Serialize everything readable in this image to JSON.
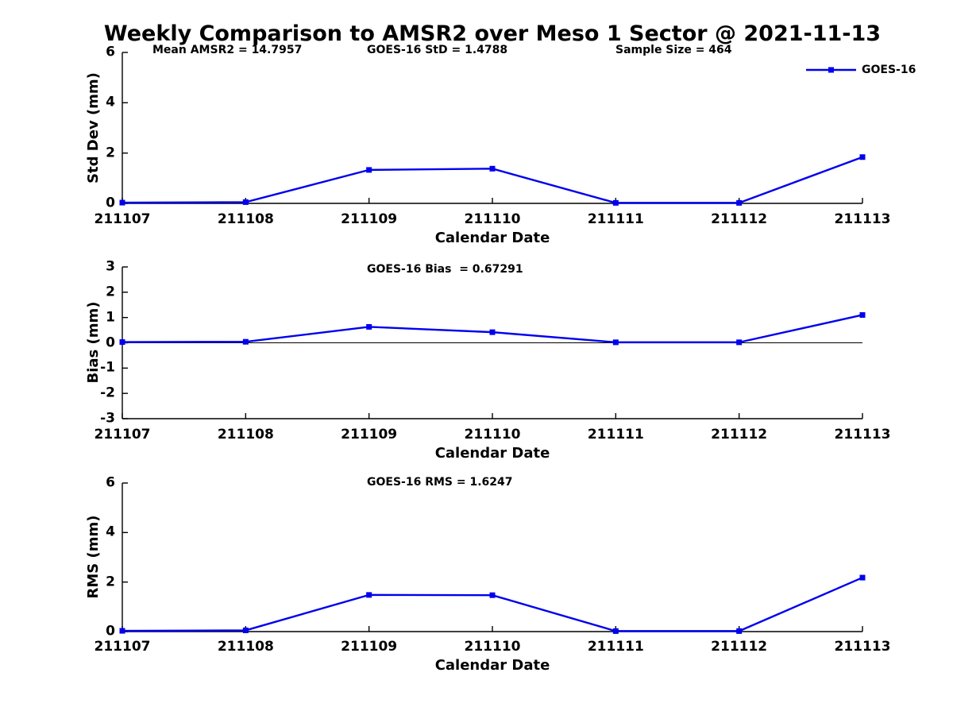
{
  "title": "Weekly Comparison to AMSR2 over Meso 1 Sector @ 2021-11-13",
  "legend": {
    "label": "GOES-16"
  },
  "colors": {
    "line": "#0000EE",
    "axis": "#000000",
    "zero_line": "#000000",
    "background": "#FFFFFF",
    "text": "#000000"
  },
  "chart_data": [
    {
      "id": "std-dev",
      "type": "line",
      "annotations": [
        "Mean AMSR2 = 14.7957",
        "GOES-16 StD = 1.4788",
        "Sample Size = 464"
      ],
      "xlabel": "Calendar Date",
      "ylabel": "Std Dev (mm)",
      "ylim": [
        0,
        6
      ],
      "ytick_values": [
        0,
        2,
        4,
        6
      ],
      "ytick_labels": [
        "0",
        "2",
        "4",
        "6"
      ],
      "categories": [
        "211107",
        "211108",
        "211109",
        "211110",
        "211111",
        "211112",
        "211113"
      ],
      "grid": false,
      "zero_line": false,
      "legend_position": "top-right",
      "series": [
        {
          "name": "GOES-16",
          "marker": "square",
          "values": [
            0.03,
            0.05,
            1.33,
            1.38,
            0.02,
            0.02,
            1.84
          ]
        }
      ]
    },
    {
      "id": "bias",
      "type": "line",
      "annotations": [
        "GOES-16 Bias  = 0.67291"
      ],
      "xlabel": "Calendar Date",
      "ylabel": "Bias (mm)",
      "ylim": [
        -3,
        3
      ],
      "ytick_values": [
        -3,
        -2,
        -1,
        0,
        1,
        2,
        3
      ],
      "ytick_labels": [
        "-3",
        "-2",
        "-1",
        "0",
        "1",
        "2",
        "3"
      ],
      "categories": [
        "211107",
        "211108",
        "211109",
        "211110",
        "211111",
        "211112",
        "211113"
      ],
      "grid": false,
      "zero_line": true,
      "legend_position": "none",
      "series": [
        {
          "name": "GOES-16",
          "marker": "square",
          "values": [
            0.03,
            0.04,
            0.63,
            0.42,
            0.02,
            0.02,
            1.1
          ]
        }
      ]
    },
    {
      "id": "rms",
      "type": "line",
      "annotations": [
        "GOES-16 RMS = 1.6247"
      ],
      "xlabel": "Calendar Date",
      "ylabel": "RMS (mm)",
      "ylim": [
        0,
        6
      ],
      "ytick_values": [
        0,
        2,
        4,
        6
      ],
      "ytick_labels": [
        "0",
        "2",
        "4",
        "6"
      ],
      "categories": [
        "211107",
        "211108",
        "211109",
        "211110",
        "211111",
        "211112",
        "211113"
      ],
      "grid": false,
      "zero_line": false,
      "legend_position": "none",
      "series": [
        {
          "name": "GOES-16",
          "marker": "square",
          "values": [
            0.03,
            0.05,
            1.48,
            1.47,
            0.02,
            0.02,
            2.18
          ]
        }
      ]
    }
  ]
}
